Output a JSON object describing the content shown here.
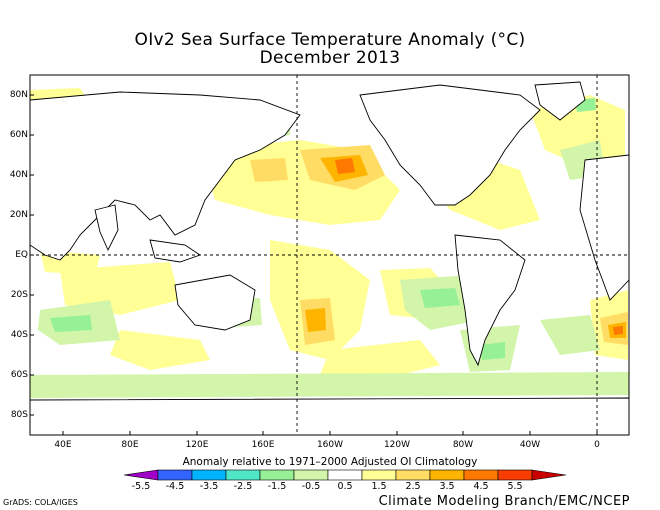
{
  "title": {
    "line1": "OIv2 Sea Surface Temperature Anomaly (°C)",
    "line2": "December 2013"
  },
  "map": {
    "lat_labels": [
      "80N",
      "60N",
      "40N",
      "20N",
      "EQ",
      "20S",
      "40S",
      "60S",
      "80S"
    ],
    "lon_labels": [
      "40E",
      "80E",
      "120E",
      "160E",
      "160W",
      "120W",
      "80W",
      "40W",
      "0"
    ],
    "land_color": "#ffffff",
    "ocean_neutral_color": "#ffffff",
    "coastline_color": "#000000"
  },
  "legend": {
    "subtitle": "Anomaly relative to 1971–2000 Adjusted OI Climatology",
    "tick_labels": [
      "-5.5",
      "-4.5",
      "-3.5",
      "-2.5",
      "-1.5",
      "-0.5",
      "0.5",
      "1.5",
      "2.5",
      "3.5",
      "4.5",
      "5.5"
    ],
    "colors": [
      "#a000c8",
      "#3264ff",
      "#00b4ff",
      "#50e6c8",
      "#96f096",
      "#d2f5aa",
      "#ffffff",
      "#ffff96",
      "#ffdc64",
      "#ffb400",
      "#ff7800",
      "#fa3c00",
      "#c80000"
    ]
  },
  "credits": {
    "left": "GrADS: COLA/IGES",
    "right": "Climate Modeling Branch/EMC/NCEP"
  }
}
